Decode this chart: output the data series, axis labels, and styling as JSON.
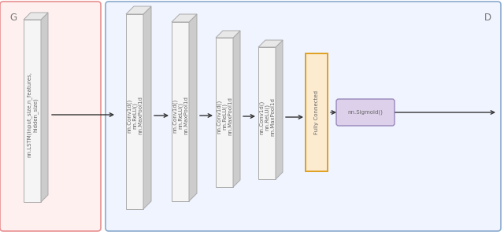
{
  "background_color": "#ffffff",
  "G_label": "G",
  "D_label": "D",
  "G_box_color": "#fff0f0",
  "G_box_edge": "#e89090",
  "D_box_color": "#f0f4ff",
  "D_box_edge": "#8aaacc",
  "lstm_label": "nn.LSTM(input_size,n_features,\nhidden_size)",
  "conv_labels": [
    "nn.Conv1d()\nnn.ReLU()\nnn.MaxPool1d",
    "nn.Conv1d()\nnn.ReLU()\nnn.MaxPool1d",
    "nn.Conv1d()\nnn.ReLU()\nnn.MaxPool1d",
    "nn.Conv1d()\nnn.ReLU()\nnn.MaxPool1d"
  ],
  "fc_label": "Fully Connected",
  "sigmoid_label": "nn.Sigmoid()",
  "fc_fill": "#fdebd0",
  "fc_edge": "#e0a020",
  "sigmoid_fill": "#ddd0ea",
  "sigmoid_edge": "#9888bb",
  "block_face_color": "#f5f5f5",
  "block_side_color": "#cccccc",
  "block_top_color": "#e8e8e8",
  "block_edge_color": "#aaaaaa",
  "arrow_color": "#333333",
  "text_color": "#666666",
  "font_size": 5.0,
  "label_font_size": 8.5
}
